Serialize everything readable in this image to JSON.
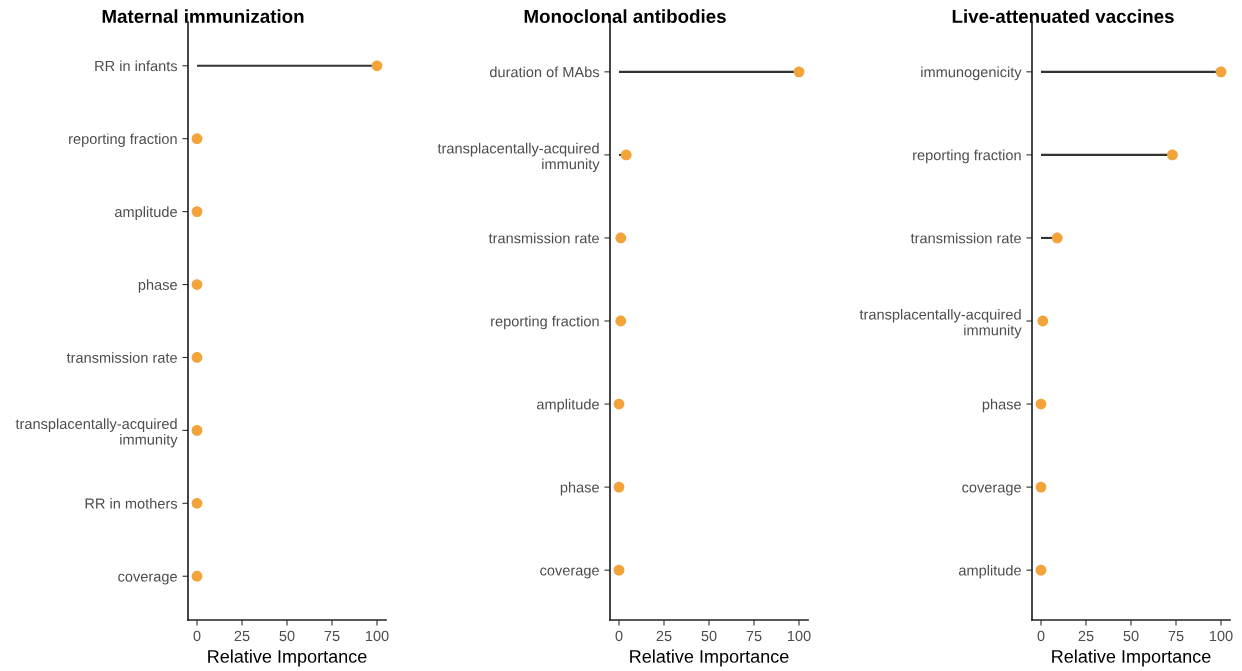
{
  "chart_data": [
    {
      "type": "lollipop",
      "title": "Maternal immunization",
      "xlabel": "Relative Importance",
      "categories": [
        "RR in infants",
        "reporting fraction",
        "amplitude",
        "phase",
        "transmission rate",
        "transplacentally-acquired\nimmunity",
        "RR in mothers",
        "coverage"
      ],
      "values": [
        100,
        0,
        0,
        0,
        0,
        0,
        0,
        0
      ],
      "orientation": "horizontal",
      "color": "#f2a43a",
      "xlim": [
        -5,
        105
      ],
      "xticks": [
        0,
        25,
        50,
        75,
        100
      ],
      "grid": false
    },
    {
      "type": "lollipop",
      "title": "Monoclonal antibodies",
      "xlabel": "Relative Importance",
      "categories": [
        "duration of MAbs",
        "transplacentally-acquired\nimmunity",
        "transmission rate",
        "reporting fraction",
        "amplitude",
        "phase",
        "coverage"
      ],
      "values": [
        100,
        4,
        1,
        1,
        0,
        0,
        0
      ],
      "orientation": "horizontal",
      "color": "#f2a43a",
      "xlim": [
        -5,
        105
      ],
      "xticks": [
        0,
        25,
        50,
        75,
        100
      ],
      "grid": false
    },
    {
      "type": "lollipop",
      "title": "Live-attenuated vaccines",
      "xlabel": "Relative Importance",
      "categories": [
        "immunogenicity",
        "reporting fraction",
        "transmission rate",
        "transplacentally-acquired\nimmunity",
        "phase",
        "coverage",
        "amplitude"
      ],
      "values": [
        100,
        73,
        9,
        1,
        0,
        0,
        0
      ],
      "orientation": "horizontal",
      "color": "#f2a43a",
      "xlim": [
        -5,
        105
      ],
      "xticks": [
        0,
        25,
        50,
        75,
        100
      ],
      "grid": false
    }
  ]
}
